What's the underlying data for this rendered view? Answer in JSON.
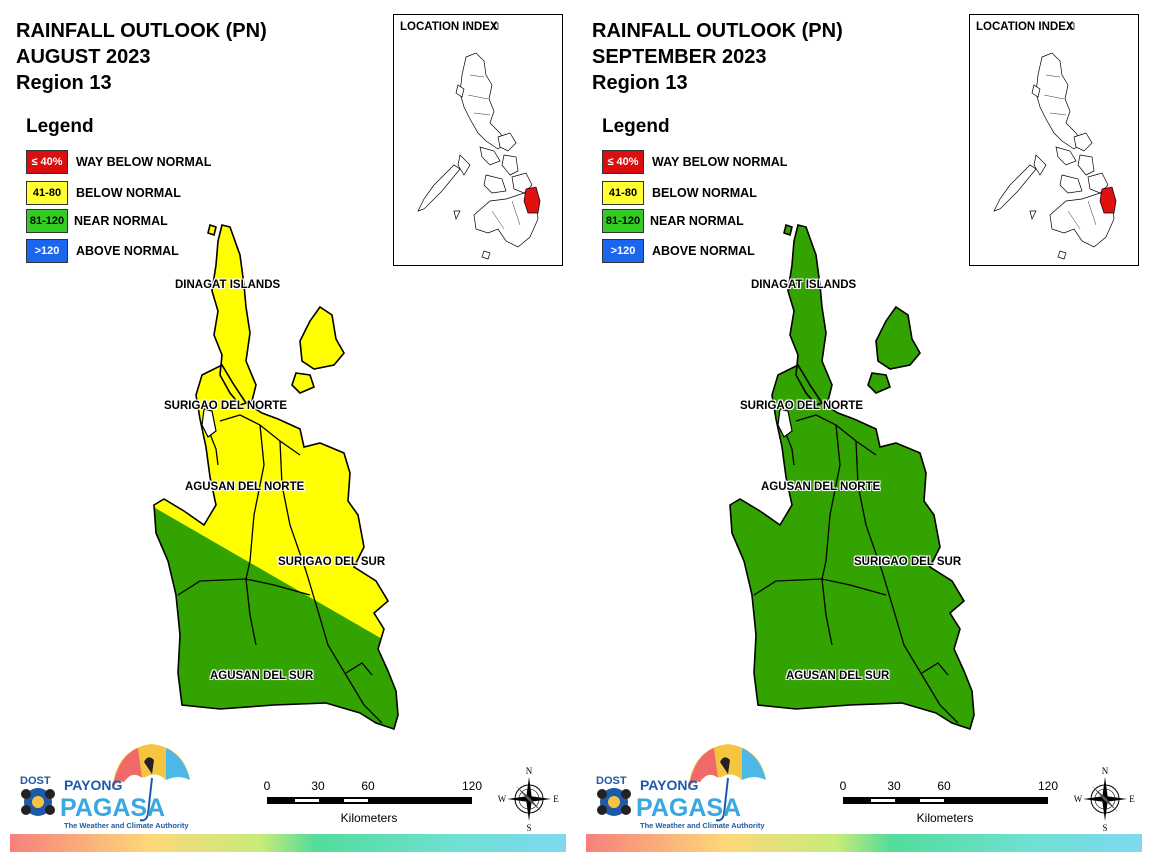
{
  "panels": [
    {
      "title_lines": [
        "RAINFALL OUTLOOK (PN)",
        "AUGUST 2023",
        "Region 13"
      ],
      "legend": {
        "title": "Legend",
        "items": [
          {
            "code": "≤ 40%",
            "label": "WAY BELOW NORMAL",
            "color": "#d90f0f"
          },
          {
            "code": "41-80",
            "label": "BELOW NORMAL",
            "color": "#ffff33"
          },
          {
            "code": "81-120",
            "label": "NEAR NORMAL",
            "color": "#33cc22"
          },
          {
            "code": ">120",
            "label": "ABOVE NORMAL",
            "color": "#1a66ee"
          }
        ]
      },
      "inset_title": "LOCATION INDEX",
      "provinces": {
        "dinagat": "DINAGAT ISLANDS",
        "surigao_norte": "SURIGAO DEL NORTE",
        "agusan_norte": "AGUSAN DEL NORTE",
        "surigao_sur": "SURIGAO DEL SUR",
        "agusan_sur": "AGUSAN DEL SUR"
      },
      "fill": {
        "north": "#ffff00",
        "south": "#33a302"
      },
      "scale": {
        "ticks": [
          "0",
          "30",
          "60",
          "120"
        ],
        "unit": "Kilometers"
      },
      "compass": {
        "n": "N",
        "s": "S",
        "e": "E",
        "w": "W"
      },
      "logo": {
        "dost": "DOST",
        "payong": "PAYONG",
        "pagasa": "PAGASA",
        "tagline": "The Weather and Climate Authority"
      }
    },
    {
      "title_lines": [
        "RAINFALL OUTLOOK (PN)",
        "SEPTEMBER 2023",
        "Region 13"
      ],
      "legend": {
        "title": "Legend",
        "items": [
          {
            "code": "≤ 40%",
            "label": "WAY BELOW NORMAL",
            "color": "#d90f0f"
          },
          {
            "code": "41-80",
            "label": "BELOW NORMAL",
            "color": "#ffff33"
          },
          {
            "code": "81-120",
            "label": "NEAR NORMAL",
            "color": "#33cc22"
          },
          {
            "code": ">120",
            "label": "ABOVE NORMAL",
            "color": "#1a66ee"
          }
        ]
      },
      "inset_title": "LOCATION INDEX",
      "provinces": {
        "dinagat": "DINAGAT ISLANDS",
        "surigao_norte": "SURIGAO DEL NORTE",
        "agusan_norte": "AGUSAN DEL NORTE",
        "surigao_sur": "SURIGAO DEL SUR",
        "agusan_sur": "AGUSAN DEL SUR"
      },
      "fill": {
        "north": "#33a302",
        "south": "#33a302"
      },
      "scale": {
        "ticks": [
          "0",
          "30",
          "60",
          "120"
        ],
        "unit": "Kilometers"
      },
      "compass": {
        "n": "N",
        "s": "S",
        "e": "E",
        "w": "W"
      },
      "logo": {
        "dost": "DOST",
        "payong": "PAYONG",
        "pagasa": "PAGASA",
        "tagline": "The Weather and Climate Authority"
      }
    }
  ]
}
